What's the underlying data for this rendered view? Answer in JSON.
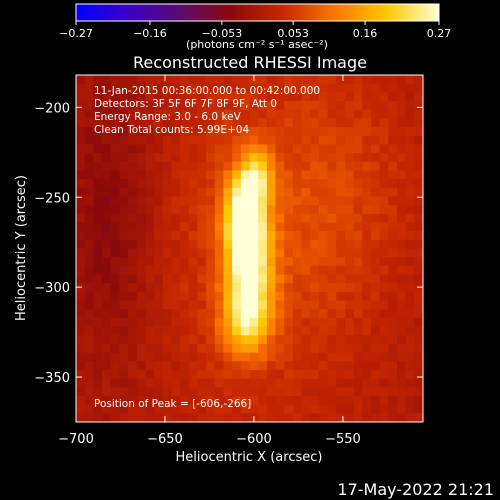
{
  "chart_data": {
    "type": "heatmap",
    "title": "Reconstructed RHESSI Image",
    "xlabel": "Heliocentric X (arcsec)",
    "ylabel": "Heliocentric Y (arcsec)",
    "xlim": [
      -700,
      -505
    ],
    "ylim": [
      -375,
      -182
    ],
    "xticks": [
      -700,
      -650,
      -600,
      -550
    ],
    "yticks": [
      -200,
      -250,
      -300,
      -350
    ],
    "xtick_labels": [
      "−700",
      "−650",
      "−600",
      "−550"
    ],
    "ytick_labels": [
      "−200",
      "−250",
      "−300",
      "−350"
    ],
    "colorbar": {
      "range": [
        -0.27,
        0.27
      ],
      "ticks": [
        -0.27,
        -0.16,
        -0.053,
        0.053,
        0.16,
        0.27
      ],
      "tick_labels": [
        "−0.27",
        "−0.16",
        "−0.053",
        "0.053",
        "0.16",
        "0.27"
      ],
      "unit_label": "(photons cm⁻² s⁻¹ asec⁻²)",
      "colors": [
        "#0000ff",
        "#3a00c8",
        "#5a0a6e",
        "#8c0a0a",
        "#c82800",
        "#ff7800",
        "#ffc800",
        "#ffffd8"
      ]
    },
    "annotations": [
      "11-Jan-2015 00:36:00.000 to 00:42:00.000",
      "Detectors: 3F 5F 6F 7F 8F 9F, Att 0",
      "Energy Range: 3.0 - 6.0 keV",
      "Clean    Total counts: 5.99E+04"
    ],
    "peak_label": "Position of Peak = [-606,-266]",
    "peak": {
      "x": -606,
      "y": -266,
      "value": 0.27
    },
    "sources": [
      {
        "x": -606,
        "y": -262,
        "sx": 7,
        "sy": 18,
        "amp": 0.21
      },
      {
        "x": -602,
        "y": -285,
        "sx": 9,
        "sy": 24,
        "amp": 0.19
      },
      {
        "x": -605,
        "y": -318,
        "sx": 9,
        "sy": 14,
        "amp": 0.15
      },
      {
        "x": -598,
        "y": -238,
        "sx": 6,
        "sy": 10,
        "amp": 0.14
      },
      {
        "x": -595,
        "y": -275,
        "sx": 45,
        "sy": 75,
        "amp": 0.06
      },
      {
        "x": -545,
        "y": -240,
        "sx": 30,
        "sy": 45,
        "amp": 0.03
      },
      {
        "x": -680,
        "y": -260,
        "sx": 18,
        "sy": 60,
        "amp": -0.05
      }
    ]
  },
  "footer": {
    "timestamp": "17-May-2022 21:21"
  }
}
